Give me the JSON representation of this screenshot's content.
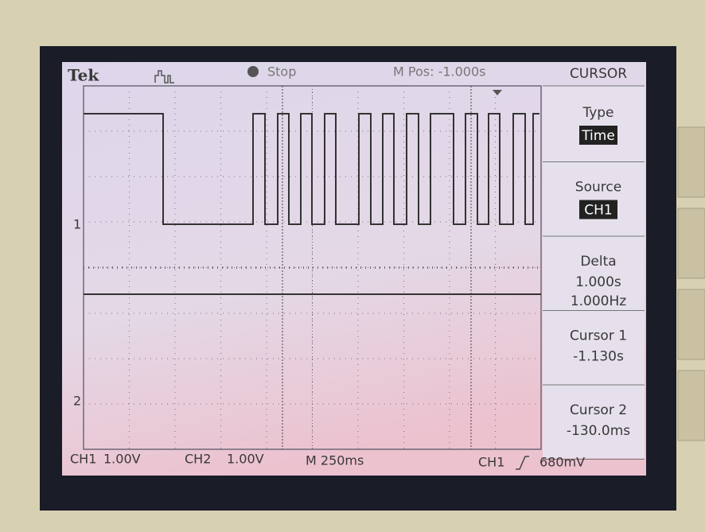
{
  "header": {
    "brand": "Tek",
    "status": "Stop",
    "position": "M Pos: -1.000s",
    "menu_title": "CURSOR"
  },
  "menu": [
    {
      "label": "Type",
      "value": "Time"
    },
    {
      "label": "Source",
      "value": "CH1"
    },
    {
      "label": "Delta",
      "lines": [
        "1.000s",
        "1.000Hz"
      ]
    },
    {
      "label": "Cursor 1",
      "lines": [
        "-1.130s"
      ]
    },
    {
      "label": "Cursor 2",
      "lines": [
        "-130.0ms"
      ]
    }
  ],
  "markers": [
    "1",
    "2"
  ],
  "footer": {
    "ch1": "CH1",
    "ch1_scale": "1.00V",
    "ch2": "CH2",
    "ch2_scale": "1.00V",
    "timebase": "M 250ms",
    "trigger_source": "CH1",
    "trigger_level": "680mV"
  }
}
